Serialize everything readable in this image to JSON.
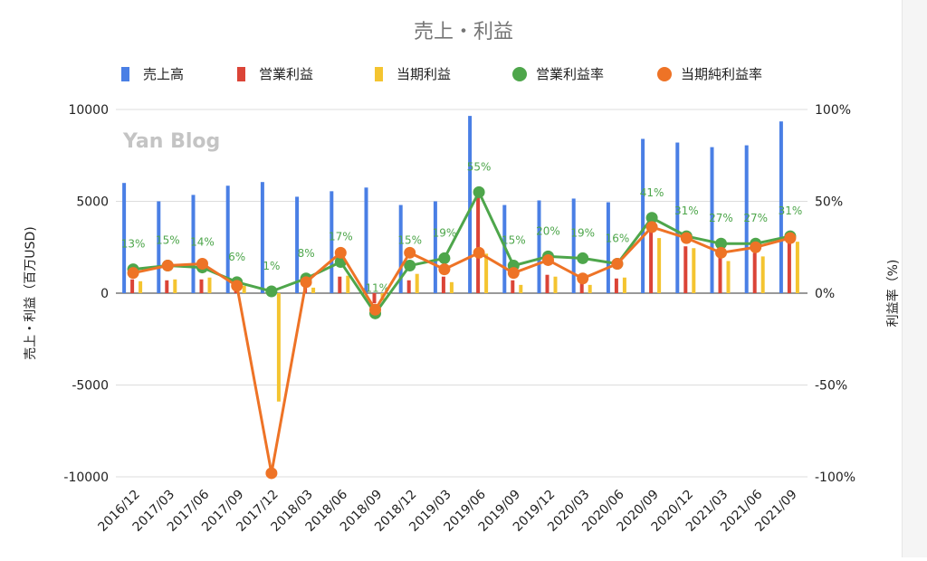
{
  "chart_data": {
    "type": "bar",
    "title": "売上・利益",
    "watermark": "Yan Blog",
    "xlabel": "",
    "ylabel_left": "売上・利益（百万USD)",
    "ylabel_right": "利益率（%)",
    "ylim_left": [
      -10000,
      10000
    ],
    "ylim_right": [
      -100,
      100
    ],
    "grid": true,
    "legend_position": "top",
    "left_ticks": [
      "10000",
      "5000",
      "0",
      "-5000",
      "-10000"
    ],
    "right_ticks": [
      "100%",
      "50%",
      "0%",
      "-50%",
      "-100%"
    ],
    "categories": [
      "2016/12",
      "2017/03",
      "2017/06",
      "2017/09",
      "2017/12",
      "2018/03",
      "2018/06",
      "2018/09",
      "2018/12",
      "2019/03",
      "2019/06",
      "2019/09",
      "2019/12",
      "2020/03",
      "2020/06",
      "2020/09",
      "2020/12",
      "2021/03",
      "2021/06",
      "2021/09"
    ],
    "series": [
      {
        "name": "売上高",
        "kind": "bar",
        "axis": "left",
        "color": "#4a7fe5",
        "values": [
          6000,
          5000,
          5350,
          5850,
          6050,
          5250,
          5550,
          5750,
          4800,
          5000,
          9650,
          4800,
          5050,
          5150,
          4950,
          8400,
          8200,
          7950,
          8050,
          9350
        ]
      },
      {
        "name": "営業利益",
        "kind": "bar",
        "axis": "left",
        "color": "#db4437",
        "values": [
          750,
          700,
          750,
          350,
          50,
          450,
          900,
          -550,
          700,
          900,
          5300,
          700,
          1000,
          950,
          800,
          3400,
          2550,
          2150,
          2200,
          2950
        ]
      },
      {
        "name": "当期利益",
        "kind": "bar",
        "axis": "left",
        "color": "#f4c430",
        "values": [
          650,
          750,
          850,
          400,
          -5900,
          300,
          950,
          -400,
          1050,
          600,
          2150,
          450,
          900,
          450,
          850,
          3000,
          2450,
          1750,
          2000,
          2800
        ]
      },
      {
        "name": "営業利益率",
        "kind": "line",
        "axis": "right",
        "color": "#4ea64b",
        "values": [
          13,
          15,
          14,
          6,
          1,
          8,
          17,
          -11,
          15,
          19,
          55,
          15,
          20,
          19,
          16,
          41,
          31,
          27,
          27,
          31
        ],
        "labels": [
          "13%",
          "15%",
          "14%",
          "6%",
          "1%",
          "8%",
          "17%",
          "-11%",
          "15%",
          "19%",
          "55%",
          "15%",
          "20%",
          "19%",
          "16%",
          "41%",
          "31%",
          "27%",
          "27%",
          "31%"
        ]
      },
      {
        "name": "当期純利益率",
        "kind": "line",
        "axis": "right",
        "color": "#ee7326",
        "values": [
          11,
          15,
          16,
          4,
          -98,
          6,
          22,
          -9,
          22,
          13,
          22,
          11,
          18,
          8,
          16,
          36,
          30,
          22,
          25,
          30
        ]
      }
    ]
  }
}
